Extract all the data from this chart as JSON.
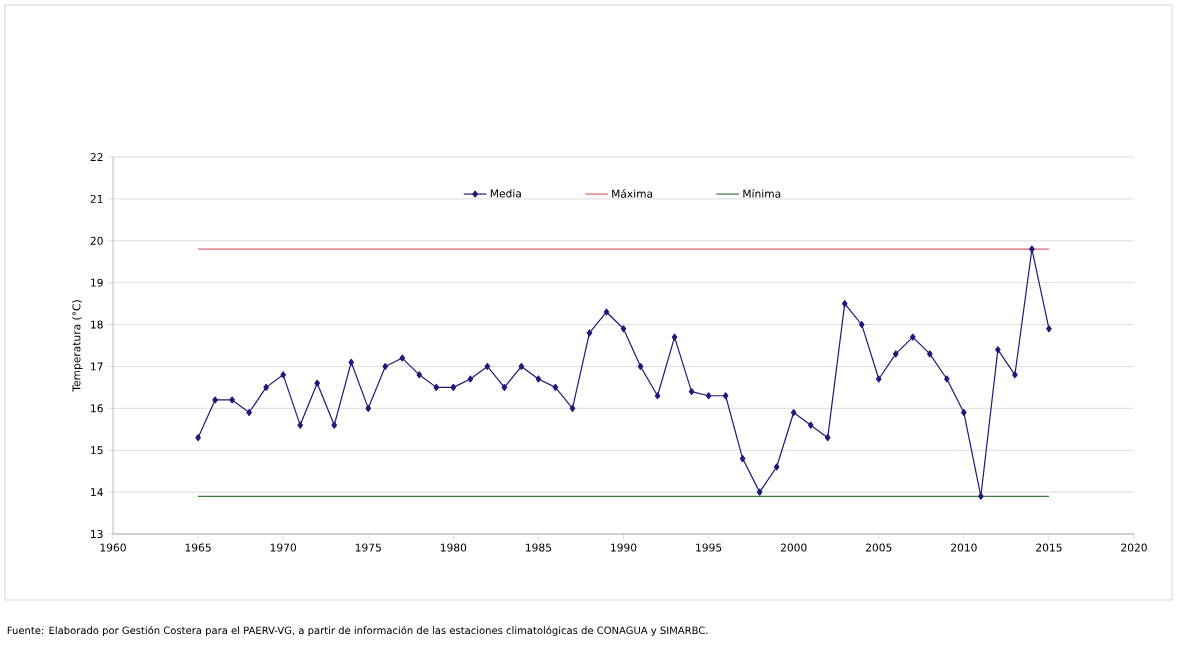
{
  "chart_data": {
    "type": "line",
    "ylabel": "Temperatura (°C)",
    "xlim": [
      1960,
      2020
    ],
    "xticks": [
      1960,
      1965,
      1970,
      1975,
      1980,
      1985,
      1990,
      1995,
      2000,
      2005,
      2010,
      2015,
      2020
    ],
    "ylim": [
      13,
      22
    ],
    "yticks": [
      13,
      14,
      15,
      16,
      17,
      18,
      19,
      20,
      21,
      22
    ],
    "grid": "y",
    "legend": "top",
    "line_style": "solid",
    "x": [
      1965,
      1966,
      1967,
      1968,
      1969,
      1970,
      1971,
      1972,
      1973,
      1974,
      1975,
      1976,
      1977,
      1978,
      1979,
      1980,
      1981,
      1982,
      1983,
      1984,
      1985,
      1986,
      1987,
      1988,
      1989,
      1990,
      1991,
      1992,
      1993,
      1994,
      1995,
      1996,
      1997,
      1998,
      1999,
      2000,
      2001,
      2002,
      2003,
      2004,
      2005,
      2006,
      2007,
      2008,
      2009,
      2010,
      2011,
      2012,
      2013,
      2014,
      2015
    ],
    "series": [
      {
        "name": "Media",
        "color": "#1f1a7a",
        "marker": "diamond",
        "values": [
          15.3,
          16.2,
          16.2,
          15.9,
          16.5,
          16.8,
          15.6,
          16.6,
          15.6,
          17.1,
          16.0,
          17.0,
          17.2,
          16.8,
          16.5,
          16.5,
          16.7,
          17.0,
          16.5,
          17.0,
          16.7,
          16.5,
          16.0,
          17.8,
          18.3,
          17.9,
          17.0,
          16.3,
          17.7,
          16.4,
          16.3,
          16.3,
          14.8,
          14.0,
          14.6,
          15.9,
          15.6,
          15.3,
          18.5,
          18.0,
          16.7,
          17.3,
          17.7,
          17.3,
          16.7,
          15.9,
          13.9,
          17.4,
          16.8,
          19.8,
          17.9
        ]
      },
      {
        "name": "Máxima",
        "color": "#e06070",
        "values": [
          19.8,
          19.8,
          19.8,
          19.8,
          19.8,
          19.8,
          19.8,
          19.8,
          19.8,
          19.8,
          19.8,
          19.8,
          19.8,
          19.8,
          19.8,
          19.8,
          19.8,
          19.8,
          19.8,
          19.8,
          19.8,
          19.8,
          19.8,
          19.8,
          19.8,
          19.8,
          19.8,
          19.8,
          19.8,
          19.8,
          19.8,
          19.8,
          19.8,
          19.8,
          19.8,
          19.8,
          19.8,
          19.8,
          19.8,
          19.8,
          19.8,
          19.8,
          19.8,
          19.8,
          19.8,
          19.8,
          19.8,
          19.8,
          19.8,
          19.8,
          19.8
        ]
      },
      {
        "name": "Mínima",
        "color": "#3a7a3a",
        "values": [
          13.9,
          13.9,
          13.9,
          13.9,
          13.9,
          13.9,
          13.9,
          13.9,
          13.9,
          13.9,
          13.9,
          13.9,
          13.9,
          13.9,
          13.9,
          13.9,
          13.9,
          13.9,
          13.9,
          13.9,
          13.9,
          13.9,
          13.9,
          13.9,
          13.9,
          13.9,
          13.9,
          13.9,
          13.9,
          13.9,
          13.9,
          13.9,
          13.9,
          13.9,
          13.9,
          13.9,
          13.9,
          13.9,
          13.9,
          13.9,
          13.9,
          13.9,
          13.9,
          13.9,
          13.9,
          13.9,
          13.9,
          13.9,
          13.9,
          13.9,
          13.9
        ]
      }
    ],
    "annotations": [
      "Fuente: Elaborado por Gestión Costera para el PAERV-VG, a partir de información de las estaciones climatológicas de CONAGUA y SIMARBC."
    ]
  }
}
